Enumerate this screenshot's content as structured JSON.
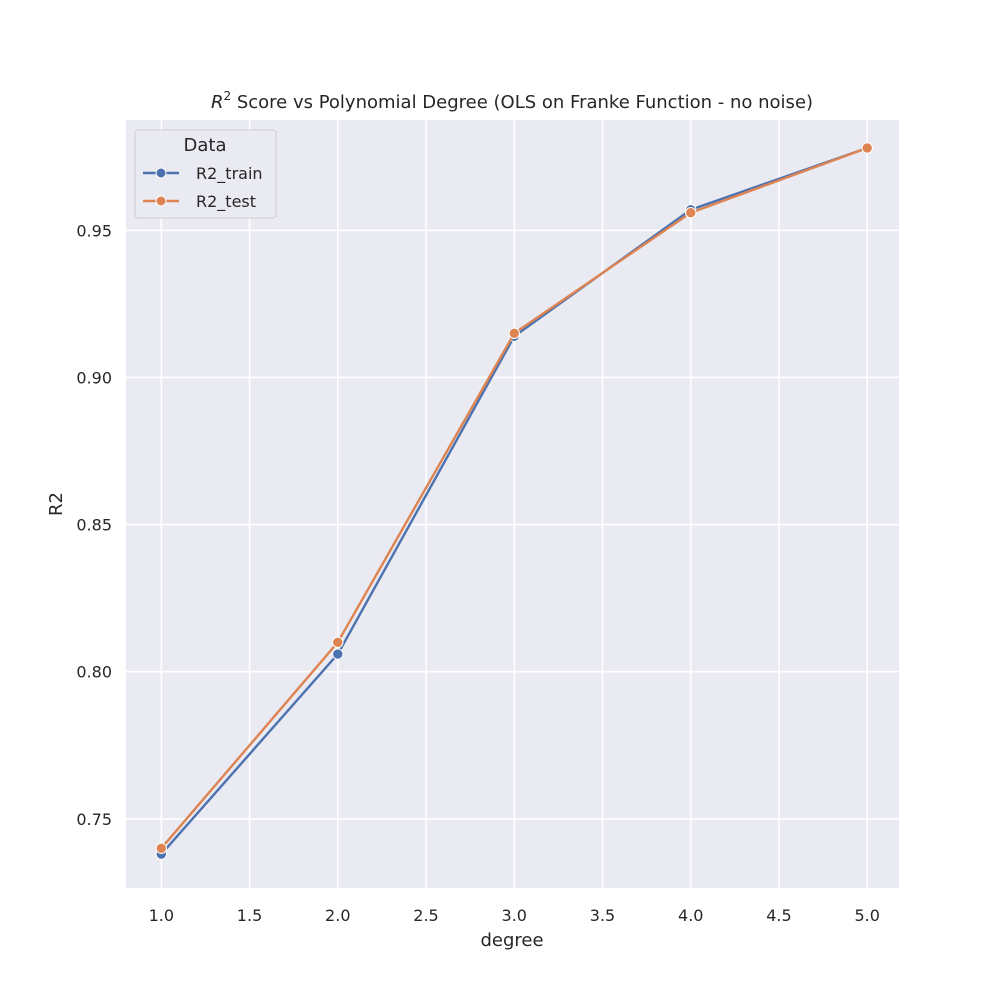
{
  "chart_data": {
    "type": "line",
    "title_symbol": "R",
    "title_superscript": "2",
    "title_rest": " Score vs Polynomial Degree (OLS on Franke Function - no noise)",
    "xlabel": "degree",
    "ylabel": "R2",
    "xlim": [
      0.8,
      5.18
    ],
    "ylim": [
      0.7265,
      0.9875
    ],
    "xticks": [
      "1.0",
      "1.5",
      "2.0",
      "2.5",
      "3.0",
      "3.5",
      "4.0",
      "4.5",
      "5.0"
    ],
    "yticks": [
      "0.75",
      "0.80",
      "0.85",
      "0.90",
      "0.95"
    ],
    "grid": true,
    "legend": {
      "title": "Data",
      "placement": "top-left"
    },
    "x": [
      1.0,
      2.0,
      3.0,
      4.0,
      5.0
    ],
    "series": [
      {
        "name": "R2_train",
        "color": "#4c72b0",
        "values": [
          0.738,
          0.806,
          0.914,
          0.957,
          0.978
        ]
      },
      {
        "name": "R2_test",
        "color": "#dd8452",
        "values": [
          0.74,
          0.81,
          0.915,
          0.956,
          0.978
        ]
      }
    ]
  }
}
